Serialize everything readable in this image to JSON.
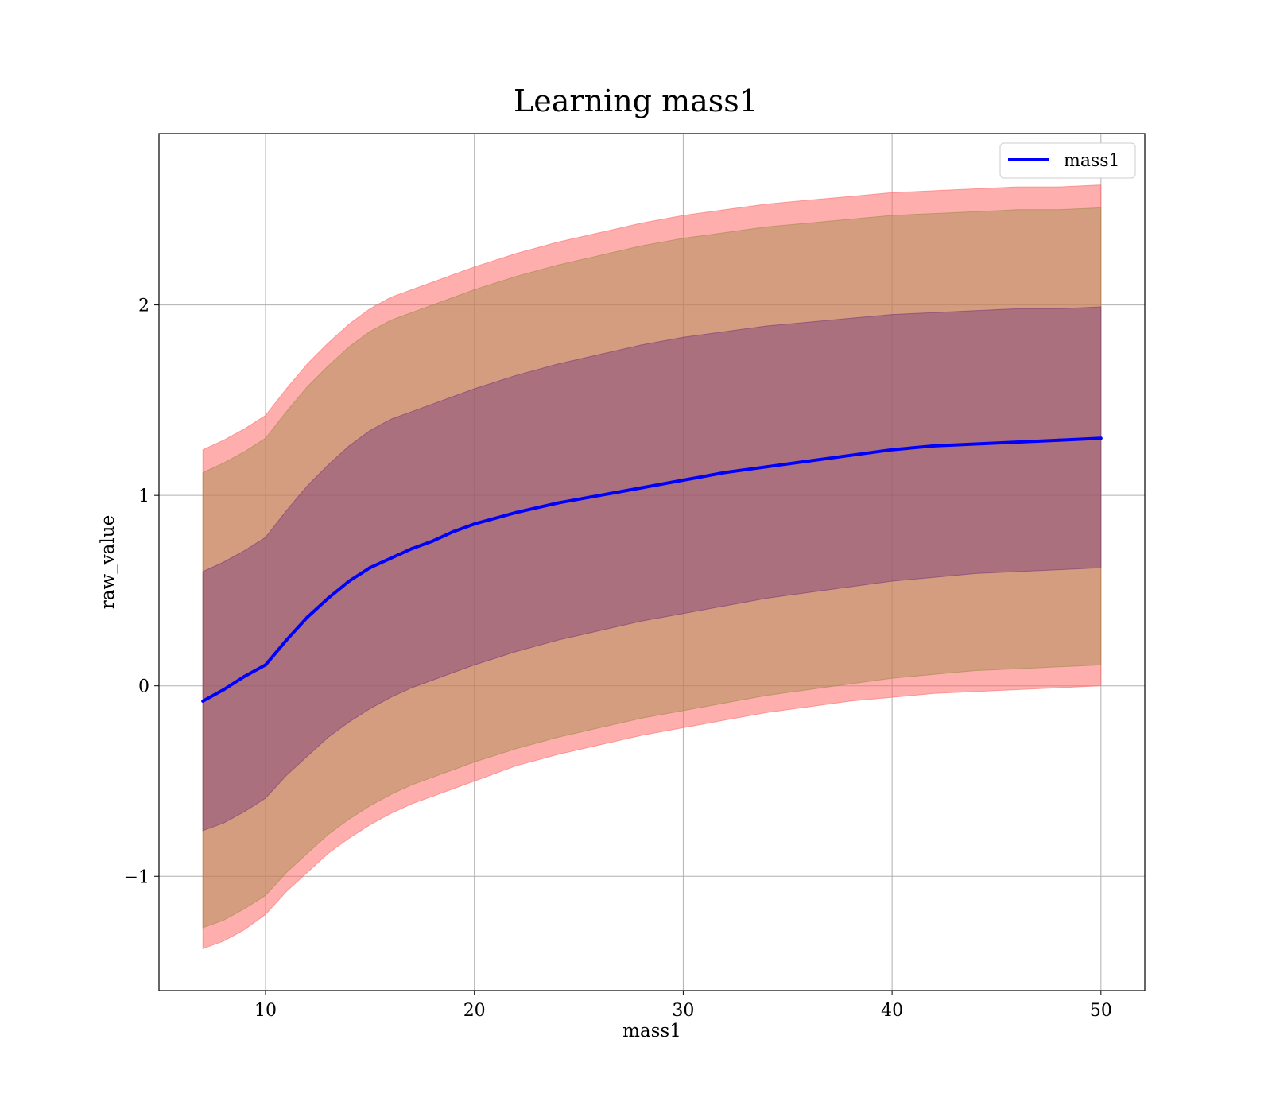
{
  "chart_data": {
    "type": "line",
    "title": "Learning mass1",
    "xlabel": "mass1",
    "ylabel": "raw_value",
    "xlim": [
      4.9,
      52.1
    ],
    "ylim": [
      -1.6,
      2.9
    ],
    "xticks": [
      10,
      20,
      30,
      40,
      50
    ],
    "yticks": [
      -1,
      0,
      1,
      2
    ],
    "grid": true,
    "legend_position": "top-right",
    "series": [
      {
        "name": "mass1",
        "color": "#0000ff",
        "x": [
          7,
          8,
          9,
          10,
          11,
          12,
          13,
          14,
          15,
          16,
          17,
          18,
          19,
          20,
          22,
          24,
          26,
          28,
          30,
          32,
          34,
          36,
          38,
          40,
          42,
          44,
          46,
          48,
          50
        ],
        "y": [
          -0.08,
          -0.02,
          0.05,
          0.11,
          0.24,
          0.36,
          0.46,
          0.55,
          0.62,
          0.67,
          0.72,
          0.76,
          0.81,
          0.85,
          0.91,
          0.96,
          1.0,
          1.04,
          1.08,
          1.12,
          1.15,
          1.18,
          1.21,
          1.24,
          1.26,
          1.27,
          1.28,
          1.29,
          1.3
        ]
      }
    ],
    "bands": [
      {
        "color": "#ff6b6b",
        "opacity": 0.55,
        "x": [
          7,
          8,
          9,
          10,
          11,
          12,
          13,
          14,
          15,
          16,
          17,
          18,
          19,
          20,
          22,
          24,
          26,
          28,
          30,
          32,
          34,
          36,
          38,
          40,
          42,
          44,
          46,
          48,
          50
        ],
        "lower": [
          -1.38,
          -1.34,
          -1.28,
          -1.2,
          -1.08,
          -0.98,
          -0.88,
          -0.8,
          -0.73,
          -0.67,
          -0.62,
          -0.58,
          -0.54,
          -0.5,
          -0.42,
          -0.36,
          -0.31,
          -0.26,
          -0.22,
          -0.18,
          -0.14,
          -0.11,
          -0.08,
          -0.06,
          -0.04,
          -0.03,
          -0.02,
          -0.01,
          0.0
        ],
        "upper": [
          1.24,
          1.29,
          1.35,
          1.42,
          1.56,
          1.69,
          1.8,
          1.9,
          1.98,
          2.04,
          2.08,
          2.12,
          2.16,
          2.2,
          2.27,
          2.33,
          2.38,
          2.43,
          2.47,
          2.5,
          2.53,
          2.55,
          2.57,
          2.59,
          2.6,
          2.61,
          2.62,
          2.62,
          2.63
        ]
      },
      {
        "color": "#a08a4a",
        "opacity": 0.45,
        "x": [
          7,
          8,
          9,
          10,
          11,
          12,
          13,
          14,
          15,
          16,
          17,
          18,
          19,
          20,
          22,
          24,
          26,
          28,
          30,
          32,
          34,
          36,
          38,
          40,
          42,
          44,
          46,
          48,
          50
        ],
        "lower": [
          -1.27,
          -1.23,
          -1.17,
          -1.1,
          -0.98,
          -0.88,
          -0.78,
          -0.7,
          -0.63,
          -0.57,
          -0.52,
          -0.48,
          -0.44,
          -0.4,
          -0.33,
          -0.27,
          -0.22,
          -0.17,
          -0.13,
          -0.09,
          -0.05,
          -0.02,
          0.01,
          0.04,
          0.06,
          0.08,
          0.09,
          0.1,
          0.11
        ],
        "upper": [
          1.12,
          1.17,
          1.23,
          1.3,
          1.44,
          1.57,
          1.68,
          1.78,
          1.86,
          1.92,
          1.96,
          2.0,
          2.04,
          2.08,
          2.15,
          2.21,
          2.26,
          2.31,
          2.35,
          2.38,
          2.41,
          2.43,
          2.45,
          2.47,
          2.48,
          2.49,
          2.5,
          2.5,
          2.51
        ]
      },
      {
        "color": "#7a3a7a",
        "opacity": 0.45,
        "x": [
          7,
          8,
          9,
          10,
          11,
          12,
          13,
          14,
          15,
          16,
          17,
          18,
          19,
          20,
          22,
          24,
          26,
          28,
          30,
          32,
          34,
          36,
          38,
          40,
          42,
          44,
          46,
          48,
          50
        ],
        "lower": [
          -0.76,
          -0.72,
          -0.66,
          -0.59,
          -0.47,
          -0.37,
          -0.27,
          -0.19,
          -0.12,
          -0.06,
          -0.01,
          0.03,
          0.07,
          0.11,
          0.18,
          0.24,
          0.29,
          0.34,
          0.38,
          0.42,
          0.46,
          0.49,
          0.52,
          0.55,
          0.57,
          0.59,
          0.6,
          0.61,
          0.62
        ],
        "upper": [
          0.6,
          0.65,
          0.71,
          0.78,
          0.92,
          1.05,
          1.16,
          1.26,
          1.34,
          1.4,
          1.44,
          1.48,
          1.52,
          1.56,
          1.63,
          1.69,
          1.74,
          1.79,
          1.83,
          1.86,
          1.89,
          1.91,
          1.93,
          1.95,
          1.96,
          1.97,
          1.98,
          1.98,
          1.99
        ]
      }
    ]
  }
}
